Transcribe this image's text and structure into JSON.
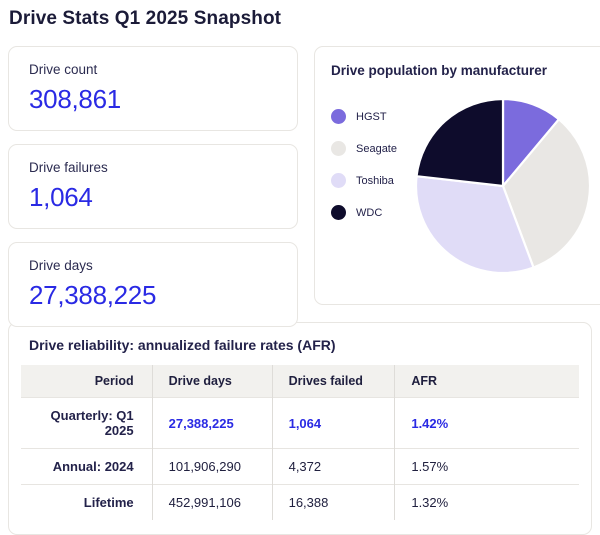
{
  "page": {
    "title": "Drive Stats Q1 2025 Snapshot"
  },
  "stat_cards": [
    {
      "label": "Drive count",
      "value": "308,861"
    },
    {
      "label": "Drive failures",
      "value": "1,064"
    },
    {
      "label": "Drive days",
      "value": "27,388,225"
    }
  ],
  "pie_card": {
    "title": "Drive population by manufacturer",
    "legend": [
      {
        "label": "HGST"
      },
      {
        "label": "Seagate"
      },
      {
        "label": "Toshiba"
      },
      {
        "label": "WDC"
      }
    ]
  },
  "chart_data": {
    "type": "pie",
    "title": "Drive population by manufacturer",
    "labels": [
      "HGST",
      "Seagate",
      "Toshiba",
      "WDC"
    ],
    "values_pct": [
      11.1,
      33.2,
      32.5,
      23.2
    ],
    "colors": [
      "#7b6bdd",
      "#e9e7e4",
      "#e0dcf7",
      "#0e0c2c"
    ],
    "start_angle_deg": 0,
    "direction": "clockwise",
    "legend_position": "left"
  },
  "table_card": {
    "title": "Drive reliability: annualized failure rates (AFR)",
    "columns": [
      "Period",
      "Drive days",
      "Drives failed",
      "AFR"
    ],
    "rows": [
      {
        "period": "Quarterly: Q1 2025",
        "drive_days": "27,388,225",
        "drives_failed": "1,064",
        "afr": "1.42%"
      },
      {
        "period": "Annual: 2024",
        "drive_days": "101,906,290",
        "drives_failed": "4,372",
        "afr": "1.57%"
      },
      {
        "period": "Lifetime",
        "drive_days": "452,991,106",
        "drives_failed": "16,388",
        "afr": "1.32%"
      }
    ]
  },
  "colors": {
    "accent_blue": "#2a2ae4",
    "text_navy": "#20203f",
    "card_border": "#e8e6e2",
    "table_header_bg": "#f2f1ee"
  }
}
